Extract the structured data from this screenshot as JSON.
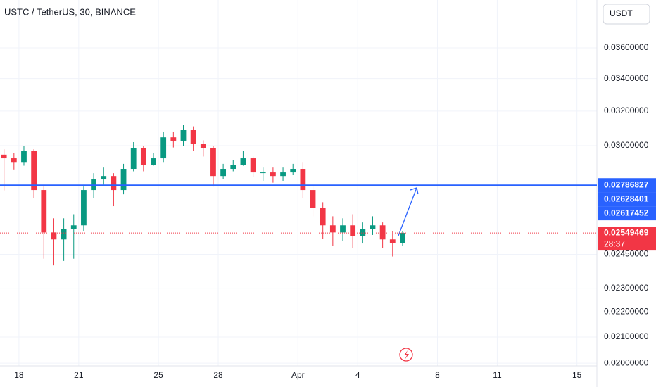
{
  "chart_data": {
    "type": "candlestick",
    "title": "USTC / TetherUS, 30, BINANCE",
    "currency": "USDT",
    "log_scale": true,
    "grid": true,
    "up_color": "#089981",
    "down_color": "#f23645",
    "x": [
      -0.75,
      -0.25,
      0.25,
      0.75,
      1.25,
      1.75,
      2.25,
      2.75,
      3.25,
      3.75,
      4.25,
      4.75,
      5.25,
      5.75,
      6.25,
      6.75,
      7.25,
      7.75,
      8.25,
      8.75,
      9.25,
      9.75,
      10.25,
      10.75,
      11.25,
      11.75,
      12.25,
      12.75,
      13.25,
      13.75,
      14.25,
      14.75,
      15.25,
      15.75,
      16.25,
      16.75,
      17.25,
      17.75,
      18.25,
      18.75,
      19.25
    ],
    "open": [
      0.0295,
      0.0293,
      0.0291,
      0.02969,
      0.02762,
      0.02552,
      0.02519,
      0.02569,
      0.02586,
      0.02762,
      0.02817,
      0.02835,
      0.02762,
      0.02873,
      0.02988,
      0.02892,
      0.0293,
      0.03047,
      0.03028,
      0.03088,
      0.03008,
      0.02988,
      0.02835,
      0.02873,
      0.02892,
      0.0293,
      0.02854,
      0.02854,
      0.02835,
      0.02854,
      0.02873,
      0.02762,
      0.02673,
      0.02586,
      0.02552,
      0.02586,
      0.02536,
      0.02569,
      0.02586,
      0.02519,
      0.02503
    ],
    "high": [
      0.0298,
      0.0296,
      0.03,
      0.0298,
      0.0278,
      0.0262,
      0.0262,
      0.0264,
      0.0278,
      0.0285,
      0.0288,
      0.0285,
      0.029,
      0.0302,
      0.03,
      0.0296,
      0.0308,
      0.0308,
      0.0312,
      0.0311,
      0.0303,
      0.03,
      0.029,
      0.0292,
      0.0297,
      0.0294,
      0.0288,
      0.0288,
      0.0288,
      0.029,
      0.0291,
      0.0278,
      0.027,
      0.0263,
      0.0262,
      0.0264,
      0.026,
      0.0263,
      0.026,
      0.0256,
      0.0256
    ],
    "low": [
      0.0276,
      0.0287,
      0.0289,
      0.0272,
      0.0243,
      0.024,
      0.0242,
      0.0243,
      0.0256,
      0.0272,
      0.0279,
      0.0268,
      0.0274,
      0.0286,
      0.0286,
      0.0289,
      0.0291,
      0.0299,
      0.03,
      0.0297,
      0.0294,
      0.0278,
      0.0282,
      0.0286,
      0.0289,
      0.0283,
      0.0281,
      0.028,
      0.0281,
      0.0284,
      0.0272,
      0.0263,
      0.0252,
      0.0249,
      0.0251,
      0.0248,
      0.025,
      0.0254,
      0.0248,
      0.0244,
      0.0249
    ],
    "close": [
      0.0293,
      0.0291,
      0.02969,
      0.02762,
      0.02552,
      0.02519,
      0.02569,
      0.02586,
      0.02762,
      0.02817,
      0.02835,
      0.02762,
      0.02873,
      0.02988,
      0.02892,
      0.0293,
      0.03047,
      0.03028,
      0.03088,
      0.03008,
      0.02988,
      0.02835,
      0.02873,
      0.02892,
      0.0293,
      0.02854,
      0.02854,
      0.02835,
      0.02854,
      0.02873,
      0.02762,
      0.02673,
      0.02586,
      0.02552,
      0.02586,
      0.02536,
      0.02569,
      0.02586,
      0.02519,
      0.02503,
      0.02549469
    ],
    "xlim": [
      -0.95,
      29.0
    ],
    "ylim": [
      0.03936,
      0.0199
    ],
    "xticks": [
      {
        "value": 0,
        "label": "18"
      },
      {
        "value": 3,
        "label": "21"
      },
      {
        "value": 7,
        "label": "25"
      },
      {
        "value": 10,
        "label": "28"
      },
      {
        "value": 14,
        "label": "Apr"
      },
      {
        "value": 17,
        "label": "4"
      },
      {
        "value": 21,
        "label": "8"
      },
      {
        "value": 24,
        "label": "11"
      },
      {
        "value": 28,
        "label": "15"
      }
    ],
    "yticks": [
      {
        "value": 0.036,
        "label": "0.03600000"
      },
      {
        "value": 0.034,
        "label": "0.03400000"
      },
      {
        "value": 0.032,
        "label": "0.03200000"
      },
      {
        "value": 0.03,
        "label": "0.03000000"
      },
      {
        "value": 0.0245,
        "label": "0.02450000"
      },
      {
        "value": 0.023,
        "label": "0.02300000"
      },
      {
        "value": 0.022,
        "label": "0.02200000"
      },
      {
        "value": 0.021,
        "label": "0.02100000"
      },
      {
        "value": 0.02,
        "label": "0.02000000"
      }
    ],
    "level_line": {
      "value": 0.02786827,
      "color": "#2962ff"
    },
    "markers": [
      {
        "value": 0.02628401,
        "color": "#2962ff"
      },
      {
        "value": 0.02617452,
        "color": "#2962ff"
      }
    ],
    "current_price": {
      "value": 0.02549469,
      "countdown": "28:37",
      "color": "#f23645"
    }
  }
}
